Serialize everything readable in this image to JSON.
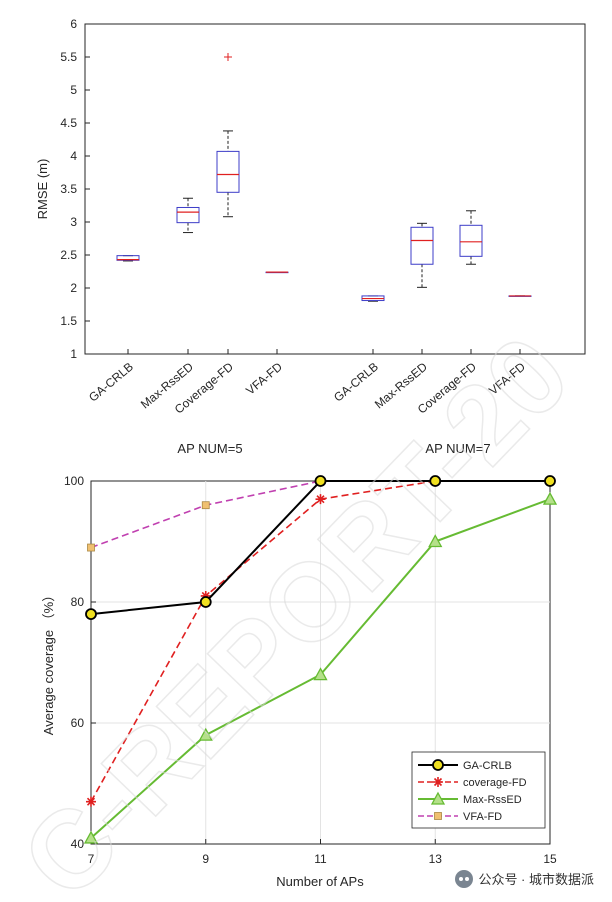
{
  "chart_data": [
    {
      "type": "box",
      "ylabel": "RMSE (m)",
      "ylim": [
        1,
        6
      ],
      "yticks": [
        1,
        1.5,
        2,
        2.5,
        3,
        3.5,
        4,
        4.5,
        5,
        5.5,
        6
      ],
      "groups": [
        {
          "label": "AP NUM=5",
          "boxes": [
            {
              "name": "GA-CRLB",
              "min": 2.41,
              "q1": 2.42,
              "median": 2.43,
              "q3": 2.49,
              "max": 2.49,
              "outliers": []
            },
            {
              "name": "Max-RssED",
              "min": 2.84,
              "q1": 2.99,
              "median": 3.15,
              "q3": 3.22,
              "max": 3.36,
              "outliers": []
            },
            {
              "name": "Coverage-FD",
              "min": 3.08,
              "q1": 3.45,
              "median": 3.72,
              "q3": 4.07,
              "max": 4.38,
              "outliers": [
                5.5
              ]
            },
            {
              "name": "VFA-FD",
              "min": 2.24,
              "q1": 2.24,
              "median": 2.24,
              "q3": 2.24,
              "max": 2.24,
              "outliers": []
            }
          ]
        },
        {
          "label": "AP NUM=7",
          "boxes": [
            {
              "name": "GA-CRLB",
              "min": 1.8,
              "q1": 1.81,
              "median": 1.84,
              "q3": 1.88,
              "max": 1.88,
              "outliers": []
            },
            {
              "name": "Max-RssED",
              "min": 2.01,
              "q1": 2.36,
              "median": 2.72,
              "q3": 2.92,
              "max": 2.98,
              "outliers": []
            },
            {
              "name": "Coverage-FD",
              "min": 2.36,
              "q1": 2.48,
              "median": 2.7,
              "q3": 2.95,
              "max": 3.17,
              "outliers": []
            },
            {
              "name": "VFA-FD",
              "min": 1.88,
              "q1": 1.88,
              "median": 1.88,
              "q3": 1.88,
              "max": 1.88,
              "outliers": []
            }
          ]
        }
      ],
      "colors": {
        "box": "#3c3cc8",
        "median": "#e02020",
        "whisker": "#222222",
        "outlier": "#e02020"
      },
      "grid": false
    },
    {
      "type": "line",
      "xlabel": "Number of APs",
      "ylabel": "Average coverage （%）",
      "x": [
        7,
        9,
        11,
        13,
        15
      ],
      "xlim": [
        7,
        15
      ],
      "ylim": [
        40,
        100
      ],
      "yticks": [
        40,
        60,
        80,
        100
      ],
      "grid": true,
      "legend_position": "bottom-right",
      "series": [
        {
          "name": "GA-CRLB",
          "values": [
            78,
            80,
            100,
            100,
            100
          ],
          "color": "#000000",
          "marker": "circle",
          "marker_fill": "#f0e020",
          "dash": "solid"
        },
        {
          "name": "coverage-FD",
          "values": [
            47,
            81,
            97,
            100,
            100
          ],
          "color": "#e02020",
          "marker": "asterisk",
          "marker_fill": "#e02020",
          "dash": "dashed"
        },
        {
          "name": "Max-RssED",
          "values": [
            41,
            58,
            68,
            90,
            97
          ],
          "color": "#66bb33",
          "marker": "triangle",
          "marker_fill": "#b5e08a",
          "dash": "solid"
        },
        {
          "name": "VFA-FD",
          "values": [
            89,
            96,
            100,
            100,
            100
          ],
          "color": "#c040b0",
          "marker": "square",
          "marker_fill": "#f0c070",
          "dash": "dashed"
        }
      ]
    }
  ],
  "watermark": "C-REPORT-20",
  "credit": {
    "icon": "wechat-icon",
    "text": "公众号 · 城市数据派"
  }
}
